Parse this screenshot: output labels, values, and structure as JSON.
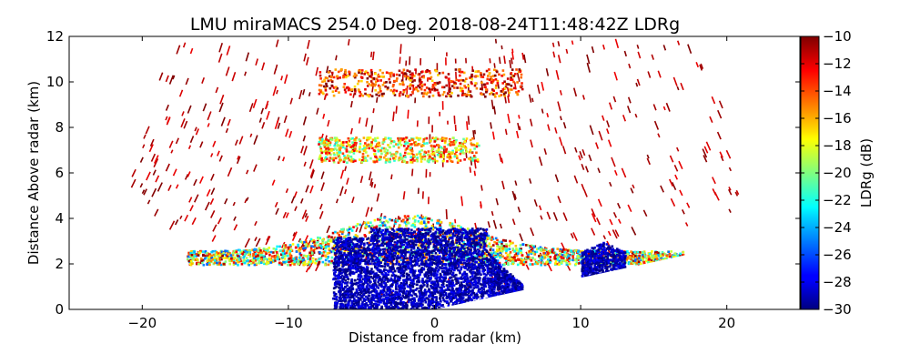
{
  "chart_data": {
    "type": "heatmap",
    "title": "LMU miraMACS 254.0 Deg. 2018-08-24T11:48:42Z  LDRg",
    "xlabel": "Distance from radar (km)",
    "ylabel": "Distance Above radar  (km)",
    "xlim": [
      -25,
      25
    ],
    "ylim": [
      0,
      12
    ],
    "x_ticks": [
      -20,
      -10,
      0,
      10,
      20
    ],
    "y_ticks": [
      0,
      2,
      4,
      6,
      8,
      10,
      12
    ],
    "grid": false,
    "colormap": "jet",
    "colorbar": {
      "label": "LDRg (dB)",
      "range": [
        -30,
        -10
      ],
      "ticks": [
        -10,
        -12,
        -14,
        -16,
        -18,
        -20,
        -22,
        -24,
        -26,
        -28,
        -30
      ]
    },
    "regions": [
      {
        "feature": "scan_fan_outer_range_km",
        "value": 21.5
      },
      {
        "feature": "low_ldr_core",
        "x_range": [
          -7,
          6
        ],
        "z_range": [
          0,
          4
        ],
        "ldr_db": -29
      },
      {
        "feature": "low_ldr_right",
        "x_range": [
          10,
          13
        ],
        "z_range": [
          1.5,
          3
        ],
        "ldr_db": -29
      },
      {
        "feature": "melting_layer_band",
        "x_range": [
          -17,
          17
        ],
        "z_range": [
          2,
          4.5
        ],
        "ldr_db": -18
      },
      {
        "feature": "mid_level_layer",
        "x_range": [
          -8,
          3
        ],
        "z_range": [
          6.5,
          7.6
        ],
        "ldr_db": -17
      },
      {
        "feature": "upper_layer",
        "x_range": [
          -8,
          6
        ],
        "z_range": [
          9.4,
          10.6
        ],
        "ldr_db": -13
      },
      {
        "feature": "scatter_noise",
        "ldr_db": -11
      }
    ]
  }
}
